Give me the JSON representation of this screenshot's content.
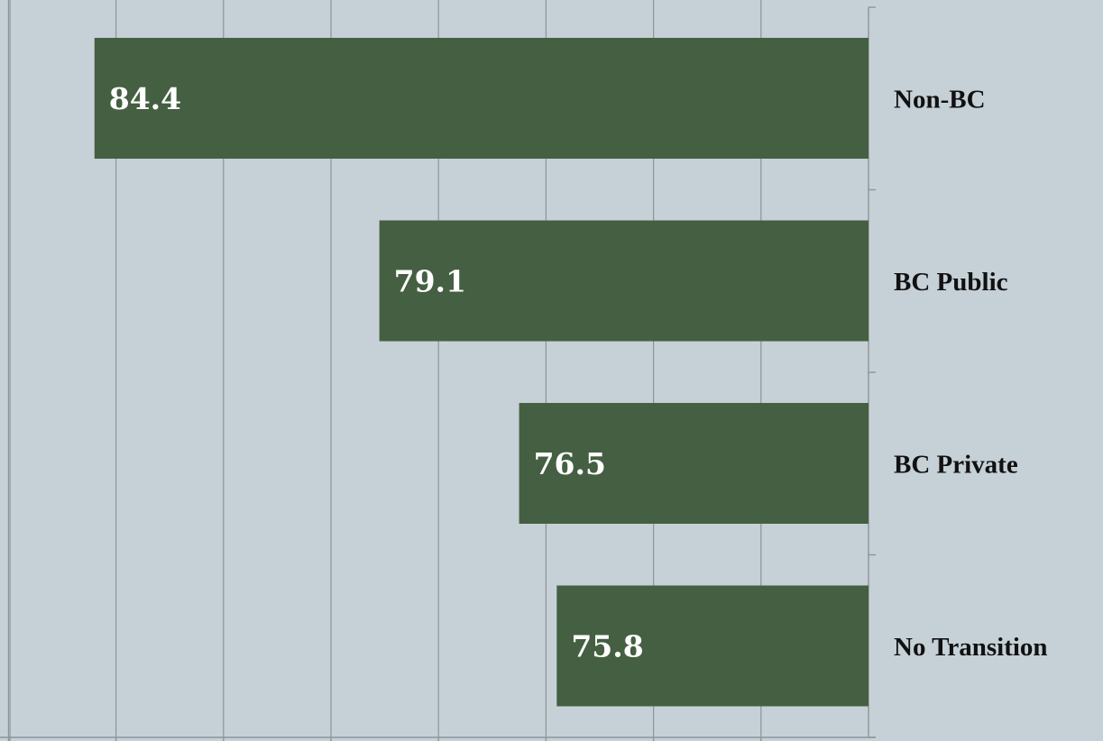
{
  "chart_data": {
    "type": "bar",
    "orientation": "horizontal",
    "x_direction": "reversed",
    "category_axis_side": "right",
    "categories": [
      "Non-BC",
      "BC Public",
      "BC Private",
      "No Transition"
    ],
    "values": [
      84.4,
      79.1,
      76.5,
      75.8
    ],
    "data_labels": [
      "84.4",
      "79.1",
      "76.5",
      "75.8"
    ],
    "xlim": [
      70,
      86
    ],
    "x_gridline_step": 2,
    "x_tick_labels_visible": false,
    "grid": true,
    "legend": "none",
    "title": "",
    "xlabel": "",
    "ylabel": "",
    "colors": {
      "background": "#c5d0d7",
      "bar": "#445f41",
      "data_label": "#ffffff",
      "category_label": "#111111",
      "grid": "#8f9497"
    }
  }
}
